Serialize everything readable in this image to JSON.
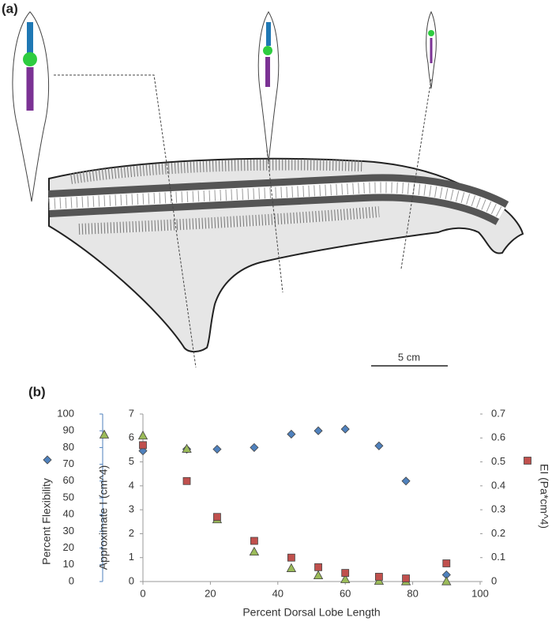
{
  "figure_a": {
    "label": "(a)",
    "scale_bar": "5 cm"
  },
  "chart_data": {
    "type": "scatter",
    "panel_label": "(b)",
    "xlabel": "Percent Dorsal Lobe Length",
    "xlim": [
      0,
      100
    ],
    "xticks": [
      0,
      20,
      40,
      60,
      80,
      100
    ],
    "ylabel": "Percent Flexibility",
    "ylim": [
      0,
      100
    ],
    "yticks": [
      0,
      10,
      20,
      30,
      40,
      50,
      60,
      70,
      80,
      90,
      100
    ],
    "y2label": "Approximate I (cm^4)",
    "y2lim": [
      0,
      7
    ],
    "y2ticks": [
      0,
      1,
      2,
      3,
      4,
      5,
      6,
      7
    ],
    "y3label": "EI (Pa*cm^4)",
    "y3lim": [
      0,
      0.7
    ],
    "y3ticks": [
      0,
      0.1,
      0.2,
      0.3,
      0.4,
      0.5,
      0.6,
      0.7
    ],
    "x": [
      0,
      13,
      22,
      33,
      44,
      52,
      60,
      70,
      78,
      90
    ],
    "series": [
      {
        "axis": "y",
        "marker": "diamond",
        "color": "#4f81bd",
        "values": [
          78,
          79,
          79,
          80,
          88,
          90,
          91,
          81,
          60,
          4
        ]
      },
      {
        "axis": "y2",
        "marker": "triangle",
        "color": "#9bbb59",
        "values": [
          6.1,
          5.55,
          2.6,
          1.25,
          0.56,
          0.26,
          0.1,
          0.03,
          0.01,
          0.01
        ]
      },
      {
        "axis": "y3",
        "marker": "square",
        "color": "#c0504d",
        "values": [
          0.57,
          0.42,
          0.27,
          0.17,
          0.1,
          0.06,
          0.036,
          0.02,
          0.013,
          0.076
        ]
      }
    ]
  }
}
